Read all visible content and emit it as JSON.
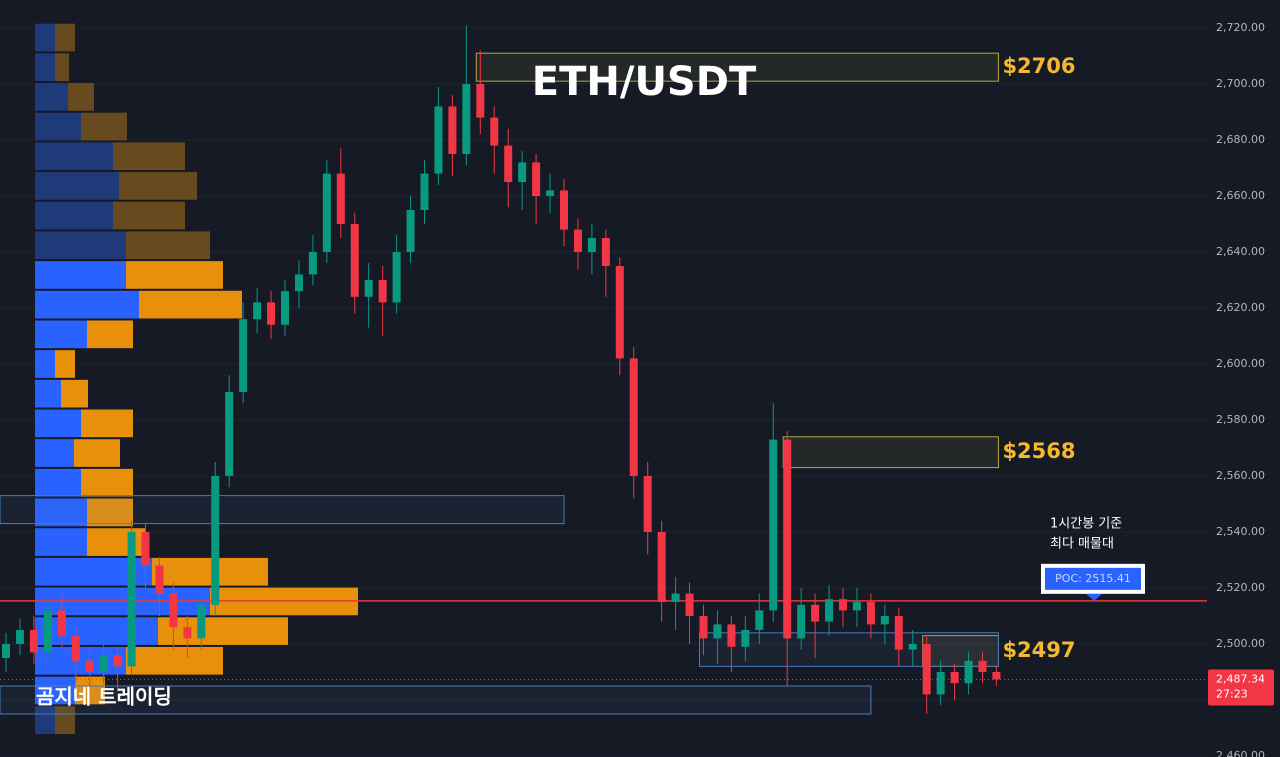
{
  "chart_data": {
    "type": "candlestick",
    "title": "ETH/USDT",
    "watermark": "곰지네 트레이딩",
    "note": [
      "1시간봉 기준",
      "최다 매물대"
    ],
    "ylim": [
      2459.64,
      2730
    ],
    "yticks": [
      {
        "value": 2460,
        "label": "2,460.00"
      },
      {
        "value": 2480,
        "label": "2,480.00"
      },
      {
        "value": 2500,
        "label": "2,500.00"
      },
      {
        "value": 2520,
        "label": "2,520.00"
      },
      {
        "value": 2540,
        "label": "2,540.00"
      },
      {
        "value": 2560,
        "label": "2,560.00"
      },
      {
        "value": 2580,
        "label": "2,580.00"
      },
      {
        "value": 2600,
        "label": "2,600.00"
      },
      {
        "value": 2620,
        "label": "2,620.00"
      },
      {
        "value": 2640,
        "label": "2,640.00"
      },
      {
        "value": 2660,
        "label": "2,660.00"
      },
      {
        "value": 2680,
        "label": "2,680.00"
      },
      {
        "value": 2700,
        "label": "2,700.00"
      },
      {
        "value": 2720,
        "label": "2,720.00"
      }
    ],
    "grid": true,
    "up_color": "#089981",
    "down_color": "#f23645",
    "open": [
      2495,
      2500,
      2505,
      2497,
      2512,
      2503,
      2494,
      2490,
      2496,
      2492,
      2540,
      2528,
      2518,
      2506,
      2502,
      2514,
      2560,
      2590,
      2616,
      2622,
      2614,
      2626,
      2632,
      2640,
      2668,
      2650,
      2624,
      2630,
      2622,
      2640,
      2655,
      2668,
      2692,
      2675,
      2700,
      2688,
      2678,
      2665,
      2672,
      2660,
      2662,
      2648,
      2640,
      2645,
      2635,
      2602,
      2560,
      2540,
      2515,
      2518,
      2510,
      2502,
      2507,
      2499,
      2505,
      2512,
      2573,
      2502,
      2514,
      2508,
      2516,
      2512,
      2515,
      2507,
      2510,
      2498,
      2500,
      2482,
      2490,
      2486,
      2494,
      2490
    ],
    "high": [
      2504,
      2509,
      2510,
      2516,
      2518,
      2506,
      2499,
      2502,
      2499,
      2544,
      2543,
      2531,
      2522,
      2510,
      2518,
      2565,
      2596,
      2622,
      2627,
      2626,
      2630,
      2637,
      2646,
      2673,
      2677,
      2654,
      2636,
      2635,
      2646,
      2660,
      2673,
      2699,
      2696,
      2721,
      2712,
      2692,
      2684,
      2676,
      2675,
      2668,
      2666,
      2652,
      2650,
      2648,
      2638,
      2606,
      2565,
      2544,
      2524,
      2522,
      2514,
      2512,
      2510,
      2510,
      2518,
      2586,
      2576,
      2520,
      2518,
      2521,
      2520,
      2520,
      2518,
      2514,
      2513,
      2505,
      2503,
      2494,
      2493,
      2497,
      2497,
      2492
    ],
    "low": [
      2490,
      2496,
      2493,
      2494,
      2499,
      2486,
      2484,
      2486,
      2483,
      2489,
      2520,
      2510,
      2498,
      2495,
      2498,
      2510,
      2556,
      2586,
      2611,
      2609,
      2610,
      2620,
      2628,
      2636,
      2645,
      2618,
      2613,
      2610,
      2618,
      2636,
      2650,
      2664,
      2667,
      2671,
      2682,
      2668,
      2656,
      2655,
      2650,
      2654,
      2642,
      2634,
      2632,
      2624,
      2596,
      2552,
      2532,
      2508,
      2505,
      2500,
      2496,
      2493,
      2490,
      2494,
      2500,
      2508,
      2485,
      2498,
      2495,
      2503,
      2506,
      2506,
      2502,
      2500,
      2492,
      2492,
      2475,
      2478,
      2480,
      2482,
      2486,
      2485
    ],
    "close": [
      2500,
      2505,
      2497,
      2512,
      2503,
      2494,
      2490,
      2496,
      2492,
      2540,
      2528,
      2518,
      2506,
      2502,
      2514,
      2560,
      2590,
      2616,
      2622,
      2614,
      2626,
      2632,
      2640,
      2668,
      2650,
      2624,
      2630,
      2622,
      2640,
      2655,
      2668,
      2692,
      2675,
      2700,
      2688,
      2678,
      2665,
      2672,
      2660,
      2662,
      2648,
      2640,
      2645,
      2635,
      2602,
      2560,
      2540,
      2515,
      2518,
      2510,
      2502,
      2507,
      2499,
      2505,
      2512,
      2573,
      2502,
      2514,
      2508,
      2516,
      2512,
      2515,
      2507,
      2510,
      2498,
      2500,
      2482,
      2490,
      2486,
      2494,
      2490,
      2487.34
    ],
    "last_price": {
      "value": 2487.34,
      "label": "2,487.34",
      "countdown": "27:23"
    },
    "poc": {
      "value": 2515.41,
      "label": "POC: 2515.41",
      "color": "#e53935"
    },
    "zones": [
      {
        "low": 2701,
        "high": 2711,
        "start": 34,
        "end": 71,
        "label": "$2706",
        "color": "#b5a642"
      },
      {
        "low": 2563,
        "high": 2574,
        "start": 56,
        "end": 71,
        "label": "$2568",
        "color": "#b5a642"
      },
      {
        "low": 2492,
        "high": 2503,
        "start": 66,
        "end": 71,
        "label": "$2497",
        "color": "#b5a642"
      },
      {
        "low": 2543,
        "high": 2553,
        "start": 0,
        "end": 40,
        "color": "#4a7ab5"
      },
      {
        "low": 2492,
        "high": 2504,
        "start": 50,
        "end": 71,
        "color": "#4a7ab5"
      },
      {
        "low": 2475,
        "high": 2485,
        "start": 0,
        "end": 62,
        "color": "#4a7ab5"
      }
    ],
    "volume_profile": {
      "bins": [
        2467.5,
        2478.1,
        2488.7,
        2499.3,
        2509.9,
        2520.5,
        2531.1,
        2541.7,
        2552.3,
        2562.9,
        2573.5,
        2584.1,
        2594.7,
        2605.3,
        2615.9,
        2626.5,
        2637.1,
        2647.7,
        2658.3,
        2668.9,
        2679.5,
        2690.1,
        2700.7,
        2711.3,
        2721.9
      ],
      "value_area": [
        2478.1,
        2637.1
      ],
      "series": [
        {
          "color": "#2962ff",
          "dim_color": "#1f3a78",
          "values": [
            20,
            40,
            91,
            123,
            175,
            117,
            52,
            52,
            46,
            39,
            46,
            26,
            20,
            52,
            104,
            91,
            91,
            78,
            84,
            78,
            46,
            33,
            20,
            20
          ]
        },
        {
          "color": "#e8900c",
          "dim_color": "#684a1f",
          "values": [
            20,
            30,
            97,
            130,
            148,
            116,
            59,
            46,
            52,
            46,
            52,
            27,
            20,
            46,
            103,
            97,
            84,
            72,
            78,
            72,
            46,
            26,
            14,
            20
          ]
        }
      ]
    }
  }
}
